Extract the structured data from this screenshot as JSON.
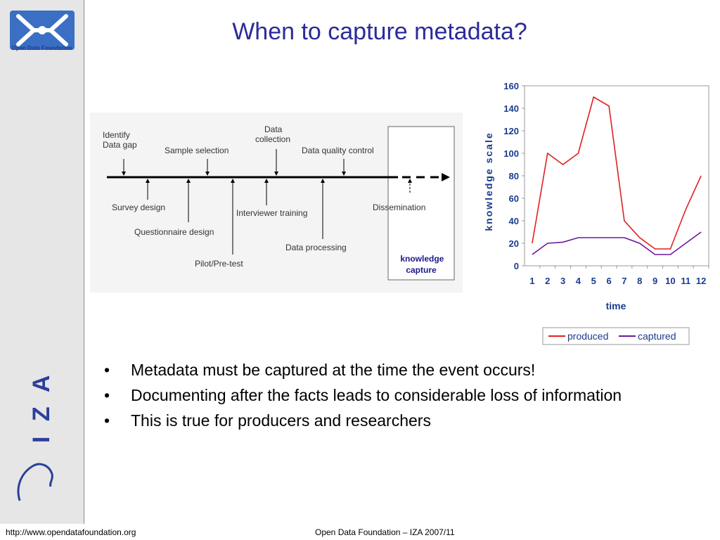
{
  "logo": {
    "text": "Open Data Foundation"
  },
  "sidebar": {
    "vertical_text": "I Z A"
  },
  "title": "When to capture metadata?",
  "timeline": {
    "above": [
      "Identify Data gap",
      "Sample selection",
      "Data collection",
      "Data quality control"
    ],
    "below": [
      "Survey design",
      "Questionnaire design",
      "Pilot/Pre-test",
      "Interviewer training",
      "Data processing",
      "Dissemination"
    ],
    "box_label": "knowledge capture"
  },
  "chart_data": {
    "type": "line",
    "x": [
      1,
      2,
      3,
      4,
      5,
      6,
      7,
      8,
      9,
      10,
      11,
      12
    ],
    "xlabel": "time",
    "ylabel": "knowledge scale",
    "ylim": [
      0,
      160
    ],
    "yticks": [
      0,
      20,
      40,
      60,
      80,
      100,
      120,
      140,
      160
    ],
    "series": [
      {
        "name": "produced",
        "color": "#e02020",
        "values": [
          20,
          100,
          90,
          100,
          150,
          142,
          40,
          25,
          15,
          15,
          50,
          80
        ]
      },
      {
        "name": "captured",
        "color": "#6a1a9a",
        "values": [
          10,
          20,
          21,
          25,
          25,
          25,
          25,
          20,
          10,
          10,
          20,
          30
        ]
      }
    ],
    "legend": "bottom"
  },
  "bullets": [
    "Metadata must be captured at the time the event occurs!",
    "Documenting after the facts leads to considerable loss of information",
    "This is true for producers and researchers"
  ],
  "footer": {
    "url": "http://www.opendatafoundation.org",
    "center": "Open Data Foundation – IZA 2007/11"
  }
}
